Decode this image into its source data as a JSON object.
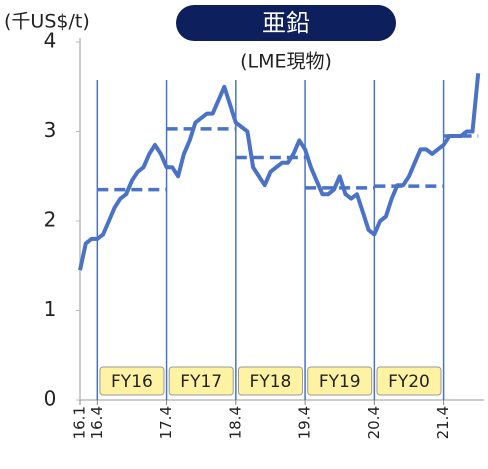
{
  "chart_data": {
    "type": "line",
    "title": "亜鉛",
    "subtitle": "(LME現物)",
    "y_label": "(千US$/t)",
    "x": [
      0,
      1,
      2,
      3,
      4,
      5,
      6,
      7,
      8,
      9,
      10,
      11,
      12,
      13,
      14,
      15,
      16,
      17,
      18,
      19,
      20,
      21,
      22,
      23,
      24,
      25,
      26,
      27,
      28,
      29,
      30,
      31,
      32,
      33,
      34,
      35,
      36,
      37,
      38,
      39,
      40,
      41,
      42,
      43,
      44,
      45,
      46,
      47,
      48,
      49,
      50,
      51,
      52,
      53,
      54,
      55,
      56,
      57,
      58,
      59,
      60,
      61,
      62,
      63,
      64,
      65,
      66,
      67,
      68,
      69
    ],
    "series": [
      {
        "color": "#4a72c6",
        "values": [
          1.45,
          1.75,
          1.8,
          1.8,
          1.85,
          2.0,
          2.15,
          2.25,
          2.3,
          2.45,
          2.55,
          2.6,
          2.75,
          2.85,
          2.75,
          2.6,
          2.6,
          2.5,
          2.75,
          2.9,
          3.1,
          3.15,
          3.2,
          3.2,
          3.35,
          3.5,
          3.3,
          3.1,
          3.05,
          3.0,
          2.6,
          2.5,
          2.4,
          2.55,
          2.6,
          2.65,
          2.65,
          2.75,
          2.9,
          2.8,
          2.6,
          2.45,
          2.3,
          2.3,
          2.35,
          2.5,
          2.3,
          2.25,
          2.3,
          2.1,
          1.9,
          1.85,
          2.0,
          2.05,
          2.25,
          2.4,
          2.4,
          2.5,
          2.65,
          2.8,
          2.8,
          2.75,
          2.8,
          2.85,
          2.95,
          2.95,
          2.95,
          3.0,
          3.0,
          3.65
        ]
      }
    ],
    "averages": {
      "starts": [
        3,
        15,
        27,
        39,
        51,
        63
      ],
      "ends": [
        15,
        27,
        39,
        51,
        63,
        69
      ],
      "values": [
        2.35,
        3.03,
        2.71,
        2.37,
        2.39,
        2.95
      ]
    },
    "period_labels": [
      "FY16",
      "FY17",
      "FY18",
      "FY19",
      "FY20"
    ],
    "xlim": [
      0,
      70
    ],
    "xticks": [
      {
        "value": 0,
        "label": "16.1"
      },
      {
        "value": 3,
        "label": "16.4"
      },
      {
        "value": 15,
        "label": "17.4"
      },
      {
        "value": 27,
        "label": "18.4"
      },
      {
        "value": 39,
        "label": "19.4"
      },
      {
        "value": 51,
        "label": "20.4"
      },
      {
        "value": 63,
        "label": "21.4"
      }
    ],
    "ylim": [
      0,
      4
    ],
    "yticks": [
      0,
      1,
      2,
      3,
      4
    ]
  }
}
